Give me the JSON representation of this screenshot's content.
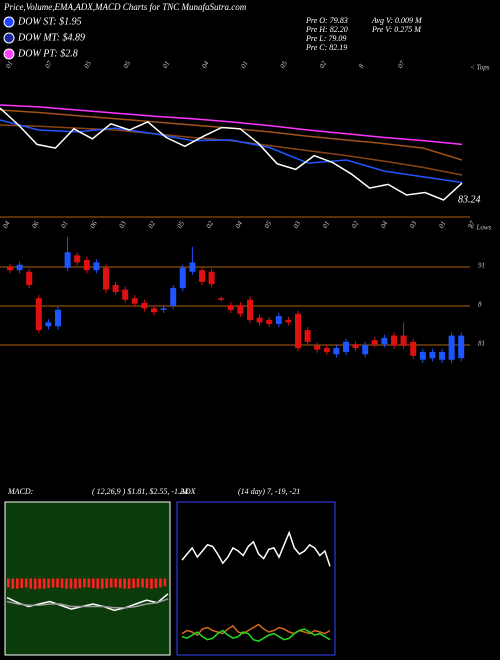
{
  "header": {
    "title": "Price,Volume,EMA,ADX,MACD Charts for TNC MunafaSutra.com",
    "legend": [
      {
        "label": "DOW ST: $1.95",
        "color": "#2244ff"
      },
      {
        "label": "DOW MT: $4.89",
        "color": "#1a2a99"
      },
      {
        "label": "DOW PT: $2.8",
        "color": "#ff44ff"
      }
    ],
    "info": [
      "Pre  O: 79.83",
      "Pre  H: 82.20",
      "Pre  L: 79.09",
      "Pre  C: 82.19",
      "Avg V: 0.009 M",
      "Pre  V: 0.275 M"
    ]
  },
  "chart_data": [
    {
      "type": "line",
      "ylim": [
        78,
        98
      ],
      "last_price": 83.24,
      "axis_labels": [
        "01",
        "07",
        "05",
        "05",
        "01",
        "04",
        "01",
        "05",
        "02",
        "8",
        "07"
      ],
      "side_label": "< Tops",
      "series": [
        {
          "color": "#ff33ff",
          "values": [
            95.6,
            95.3,
            94.8,
            94.3,
            93.8,
            93.4,
            92.9,
            92.3,
            91.6,
            91.0,
            90.4,
            89.9,
            89.3
          ]
        },
        {
          "color": "#a0521a",
          "values": [
            94.8,
            94.4,
            93.9,
            93.4,
            92.9,
            92.4,
            91.9,
            91.3,
            90.6,
            90.0,
            89.4,
            88.7,
            86.8
          ]
        },
        {
          "color": "#8b4513",
          "values": [
            92.4,
            92.2,
            91.9,
            91.6,
            91.0,
            90.4,
            89.9,
            89.1,
            88.3,
            87.5,
            86.6,
            85.6,
            84.4
          ]
        },
        {
          "color": "#2255ff",
          "values": [
            93.2,
            91.6,
            91.3,
            91.9,
            91.0,
            89.9,
            90.0,
            88.8,
            86.3,
            86.8,
            85.0,
            84.1,
            83.2
          ]
        },
        {
          "color": "#ffffff",
          "values": [
            95.1,
            92.4,
            89.3,
            88.7,
            91.8,
            90.2,
            92.6,
            91.6,
            92.9,
            90.4,
            89.0,
            90.6,
            92.0,
            91.8,
            89.4,
            86.2,
            85.3,
            87.5,
            86.4,
            84.6,
            82.3,
            82.9,
            81.2,
            81.6,
            80.4,
            83.1
          ]
        }
      ]
    },
    {
      "type": "candlestick",
      "ylim": [
        76.5,
        96.4
      ],
      "yticks": [
        91,
        {
          "value": 86,
          "label": "8"
        },
        81
      ],
      "axis_labels": [
        "04",
        "06",
        "01",
        "06",
        "03",
        "02",
        "05",
        "02",
        "04",
        "05",
        "03",
        "01",
        "02",
        "04",
        "03",
        "01",
        "97"
      ],
      "side_label": "< Lows",
      "up_color": "#1f55ff",
      "down_color": "#e01010",
      "open": [
        91.0,
        90.6,
        90.4,
        87.0,
        83.4,
        83.4,
        90.9,
        92.5,
        91.9,
        90.6,
        90.9,
        88.7,
        88.1,
        87.0,
        86.4,
        85.7,
        85.5,
        86.0,
        88.3,
        90.4,
        90.6,
        90.4,
        87.0,
        86.1,
        86.1,
        86.8,
        84.5,
        84.2,
        83.7,
        84.2,
        85.0,
        82.9,
        80.9,
        80.6,
        79.8,
        80.1,
        81.1,
        79.8,
        81.6,
        81.1,
        82.2,
        82.2,
        81.4,
        79.1,
        79.3,
        79.1,
        79.1,
        79.3
      ],
      "high": [
        91.4,
        91.7,
        90.8,
        87.4,
        84.3,
        85.9,
        94.9,
        92.9,
        92.3,
        92.0,
        91.3,
        89.1,
        88.5,
        87.4,
        86.8,
        86.1,
        86.1,
        88.7,
        91.3,
        93.6,
        91.0,
        90.8,
        87.2,
        86.5,
        86.5,
        87.2,
        84.9,
        84.6,
        85.1,
        84.6,
        85.4,
        83.3,
        81.3,
        81.0,
        81.0,
        81.8,
        81.5,
        81.4,
        82.0,
        82.3,
        82.6,
        83.9,
        81.8,
        80.5,
        80.5,
        80.5,
        82.6,
        82.6
      ],
      "low": [
        90.2,
        90.2,
        88.3,
        82.5,
        83.0,
        83.0,
        90.5,
        91.2,
        90.2,
        90.2,
        87.7,
        87.4,
        86.4,
        85.9,
        85.3,
        84.8,
        85.1,
        85.6,
        87.9,
        90.0,
        88.7,
        88.4,
        86.6,
        85.1,
        84.6,
        83.8,
        83.5,
        83.3,
        83.3,
        83.5,
        80.2,
        81.0,
        80.0,
        79.7,
        79.4,
        79.7,
        80.2,
        79.4,
        80.7,
        80.7,
        80.5,
        80.5,
        79.2,
        78.7,
        78.9,
        78.7,
        78.7,
        78.9
      ],
      "close": [
        90.6,
        91.3,
        88.7,
        82.9,
        83.9,
        85.5,
        92.9,
        91.6,
        90.6,
        91.6,
        88.1,
        87.8,
        86.8,
        86.3,
        85.7,
        85.2,
        85.7,
        88.3,
        90.9,
        91.6,
        89.1,
        88.8,
        86.8,
        85.5,
        85.0,
        84.2,
        83.9,
        83.7,
        84.7,
        83.9,
        80.6,
        81.4,
        80.4,
        80.1,
        80.6,
        81.4,
        80.6,
        81.0,
        81.1,
        81.9,
        80.9,
        80.9,
        79.6,
        80.1,
        80.1,
        80.1,
        82.2,
        82.2
      ]
    },
    {
      "type": "macd",
      "title": "MACD:",
      "params": "( 12,26,9 ) $1.81, $2.55, -1.24",
      "ylim": [
        -6,
        6
      ],
      "bar_color": "#ff2020",
      "histogram": [
        -0.7,
        -0.8,
        -0.8,
        -0.75,
        -0.7,
        -0.8,
        -0.85,
        -0.8,
        -0.8,
        -0.75,
        -0.7,
        -0.7,
        -0.75,
        -0.8,
        -0.8,
        -0.8,
        -0.75,
        -0.7,
        -0.7,
        -0.75,
        -0.8,
        -0.8,
        -0.75,
        -0.7,
        -0.7,
        -0.75,
        -0.8,
        -0.8,
        -0.75,
        -0.7,
        -0.7,
        -0.75,
        -0.8,
        -0.75,
        -0.7,
        -0.6
      ],
      "series": [
        {
          "color": "#ffffff",
          "values": [
            -1.5,
            -1.9,
            -2.2,
            -2.0,
            -1.8,
            -2.1,
            -2.4,
            -2.2,
            -2.0,
            -2.2,
            -2.5,
            -2.3,
            -2.0,
            -1.7,
            -1.9,
            -1.2
          ]
        },
        {
          "color": "#999999",
          "values": [
            -1.8,
            -2.0,
            -2.1,
            -2.1,
            -2.0,
            -2.0,
            -2.2,
            -2.2,
            -2.2,
            -2.2,
            -2.3,
            -2.3,
            -2.2,
            -2.0,
            -1.9,
            -1.6
          ]
        }
      ]
    },
    {
      "type": "adx",
      "title": "ADX",
      "params": "(14  day) 7, -19, -21",
      "ylim": [
        0,
        100
      ],
      "series": [
        {
          "color": "#ffffff",
          "values": [
            62,
            66,
            70,
            64,
            68,
            72,
            71,
            66,
            60,
            64,
            70,
            68,
            65,
            71,
            74,
            66,
            63,
            69,
            70,
            64,
            72,
            80,
            70,
            66,
            68,
            72,
            70,
            65,
            68,
            58
          ]
        },
        {
          "color": "#d2691e",
          "values": [
            14,
            16,
            15,
            13,
            17,
            18,
            16,
            15,
            14,
            17,
            19,
            15,
            14,
            16,
            18,
            20,
            17,
            15,
            16,
            18,
            17,
            15,
            14,
            16,
            15,
            14,
            16,
            15,
            14,
            16
          ]
        },
        {
          "color": "#22dd22",
          "values": [
            12,
            11,
            13,
            15,
            12,
            10,
            11,
            14,
            16,
            13,
            11,
            12,
            15,
            14,
            10,
            9,
            11,
            13,
            14,
            12,
            10,
            11,
            14,
            16,
            17,
            15,
            13,
            14,
            12,
            10
          ]
        }
      ]
    }
  ]
}
